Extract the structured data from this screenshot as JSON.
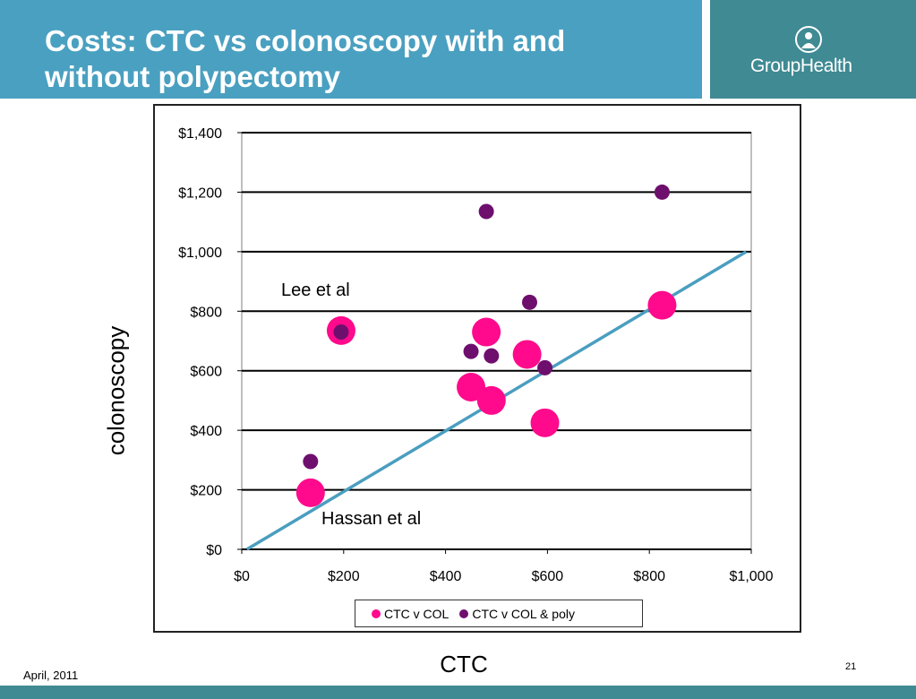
{
  "slide": {
    "title": "Costs: CTC vs colonoscopy with and without polypectomy",
    "logo_text": "GroupHealth",
    "date": "April, 2011",
    "page_number": "21",
    "y_axis_title": "colonoscopy",
    "x_axis_title": "CTC",
    "colors": {
      "header": "#4aa0c0",
      "logo_band": "#3f8a93",
      "footer": "#3f8a93"
    }
  },
  "chart_data": {
    "type": "scatter",
    "title": "",
    "xlabel": "CTC",
    "ylabel": "colonoscopy",
    "xlim": [
      0,
      1000
    ],
    "ylim": [
      0,
      1400
    ],
    "x_ticks": [
      0,
      200,
      400,
      600,
      800,
      1000
    ],
    "x_tick_labels": [
      "$0",
      "$200",
      "$400",
      "$600",
      "$800",
      "$1,000"
    ],
    "y_ticks": [
      0,
      200,
      400,
      600,
      800,
      1000,
      1200,
      1400
    ],
    "y_tick_labels": [
      "$0",
      "$200",
      "$400",
      "$600",
      "$800",
      "$1,000",
      "$1,200",
      "$1,400"
    ],
    "grid": "horizontal",
    "legend_position": "bottom",
    "series": [
      {
        "name": "CTC v COL",
        "color": "#ff0a8c",
        "marker": "large-circle",
        "points": [
          {
            "x": 135,
            "y": 190
          },
          {
            "x": 195,
            "y": 735
          },
          {
            "x": 450,
            "y": 545
          },
          {
            "x": 480,
            "y": 730
          },
          {
            "x": 490,
            "y": 500
          },
          {
            "x": 560,
            "y": 655
          },
          {
            "x": 595,
            "y": 425
          },
          {
            "x": 825,
            "y": 820
          }
        ]
      },
      {
        "name": "CTC v COL & poly",
        "color": "#6e0f6e",
        "marker": "small-circle",
        "points": [
          {
            "x": 135,
            "y": 295
          },
          {
            "x": 195,
            "y": 730
          },
          {
            "x": 450,
            "y": 665
          },
          {
            "x": 480,
            "y": 1135
          },
          {
            "x": 490,
            "y": 650
          },
          {
            "x": 565,
            "y": 830
          },
          {
            "x": 595,
            "y": 610
          },
          {
            "x": 825,
            "y": 1200
          }
        ]
      }
    ],
    "reference_line": {
      "color": "#4a9ec0",
      "from": {
        "x": 10,
        "y": 0
      },
      "to": {
        "x": 990,
        "y": 1000
      }
    },
    "annotations": [
      {
        "id": "lee",
        "text": "Lee et al"
      },
      {
        "id": "hassan",
        "text": "Hassan et al"
      }
    ]
  }
}
